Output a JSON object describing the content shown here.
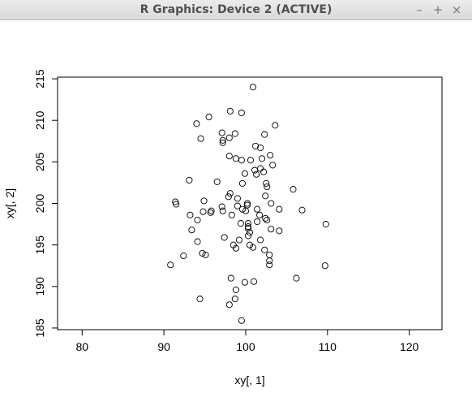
{
  "window": {
    "title": "R Graphics: Device 2 (ACTIVE)",
    "buttons": {
      "minimize": "–",
      "maximize": "+",
      "close": "×"
    }
  },
  "chart_data": {
    "type": "scatter",
    "title": "",
    "xlabel": "xy[, 1]",
    "ylabel": "xy[, 2]",
    "xlim": [
      77,
      124
    ],
    "ylim": [
      184.8,
      215.2
    ],
    "x_ticks": [
      80,
      90,
      100,
      110,
      120
    ],
    "y_ticks": [
      185,
      190,
      195,
      200,
      205,
      210,
      215
    ],
    "grid": false,
    "marker": "open-circle",
    "points": [
      [
        100.9,
        214.0
      ],
      [
        98.1,
        211.1
      ],
      [
        99.5,
        210.9
      ],
      [
        95.5,
        210.4
      ],
      [
        94.0,
        209.6
      ],
      [
        103.6,
        209.4
      ],
      [
        97.1,
        208.5
      ],
      [
        98.7,
        208.4
      ],
      [
        102.3,
        208.3
      ],
      [
        98.0,
        207.9
      ],
      [
        94.5,
        207.8
      ],
      [
        97.2,
        207.6
      ],
      [
        97.2,
        207.3
      ],
      [
        101.2,
        206.9
      ],
      [
        101.8,
        206.7
      ],
      [
        103.0,
        205.8
      ],
      [
        98.0,
        205.7
      ],
      [
        98.8,
        205.4
      ],
      [
        99.5,
        205.2
      ],
      [
        100.6,
        205.2
      ],
      [
        102.0,
        205.4
      ],
      [
        103.3,
        204.6
      ],
      [
        101.8,
        204.2
      ],
      [
        101.1,
        204.0
      ],
      [
        102.2,
        203.8
      ],
      [
        99.9,
        203.6
      ],
      [
        101.3,
        203.5
      ],
      [
        93.1,
        202.8
      ],
      [
        96.5,
        202.6
      ],
      [
        99.6,
        202.4
      ],
      [
        102.5,
        202.4
      ],
      [
        102.6,
        202.0
      ],
      [
        105.8,
        201.7
      ],
      [
        98.1,
        201.2
      ],
      [
        97.9,
        200.8
      ],
      [
        99.0,
        200.6
      ],
      [
        102.4,
        200.9
      ],
      [
        91.4,
        200.2
      ],
      [
        91.5,
        199.9
      ],
      [
        94.9,
        200.3
      ],
      [
        100.2,
        200.0
      ],
      [
        100.2,
        199.8
      ],
      [
        103.1,
        200.0
      ],
      [
        99.0,
        199.7
      ],
      [
        97.1,
        199.6
      ],
      [
        99.6,
        199.3
      ],
      [
        100.0,
        199.1
      ],
      [
        95.8,
        199.1
      ],
      [
        95.7,
        198.9
      ],
      [
        94.8,
        199.0
      ],
      [
        97.2,
        199.1
      ],
      [
        104.1,
        199.3
      ],
      [
        106.9,
        199.2
      ],
      [
        101.4,
        199.3
      ],
      [
        93.2,
        198.6
      ],
      [
        98.3,
        198.6
      ],
      [
        101.7,
        198.6
      ],
      [
        102.4,
        198.2
      ],
      [
        102.6,
        198.0
      ],
      [
        94.1,
        198.0
      ],
      [
        99.4,
        197.6
      ],
      [
        100.3,
        197.6
      ],
      [
        101.4,
        197.8
      ],
      [
        109.8,
        197.5
      ],
      [
        100.3,
        197.2
      ],
      [
        100.3,
        197.0
      ],
      [
        103.1,
        196.9
      ],
      [
        100.5,
        196.5
      ],
      [
        104.1,
        196.7
      ],
      [
        93.4,
        196.8
      ],
      [
        100.3,
        196.1
      ],
      [
        97.4,
        195.9
      ],
      [
        99.2,
        195.6
      ],
      [
        94.1,
        195.4
      ],
      [
        101.8,
        195.6
      ],
      [
        98.5,
        195.0
      ],
      [
        100.5,
        195.0
      ],
      [
        98.8,
        194.6
      ],
      [
        100.9,
        194.7
      ],
      [
        94.7,
        194.0
      ],
      [
        95.1,
        193.8
      ],
      [
        102.3,
        194.4
      ],
      [
        92.4,
        193.7
      ],
      [
        102.9,
        193.8
      ],
      [
        102.9,
        193.1
      ],
      [
        90.8,
        192.6
      ],
      [
        102.9,
        192.6
      ],
      [
        109.7,
        192.5
      ],
      [
        106.2,
        191.0
      ],
      [
        98.2,
        191.0
      ],
      [
        101.0,
        190.6
      ],
      [
        99.9,
        190.5
      ],
      [
        98.8,
        189.6
      ],
      [
        94.4,
        188.5
      ],
      [
        98.7,
        188.5
      ],
      [
        98.0,
        187.8
      ],
      [
        99.5,
        185.9
      ]
    ]
  }
}
